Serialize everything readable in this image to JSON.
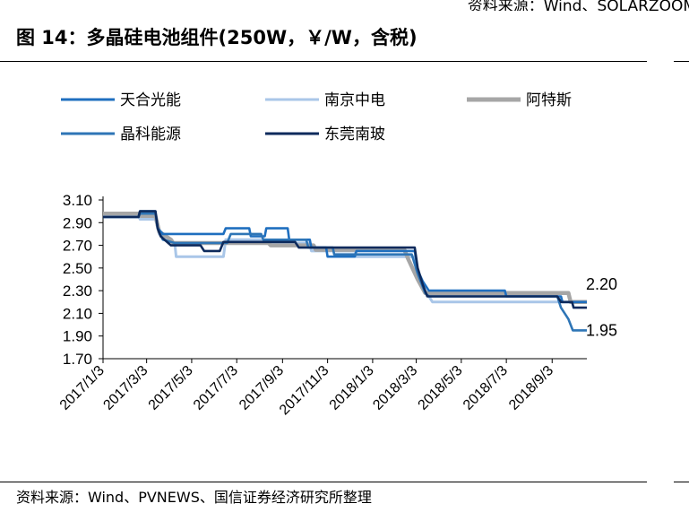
{
  "header": {
    "source_top": "资料来源：Wind、SOLARZOOM",
    "title": "图 14：多晶硅电池组件(250W，￥/W，含税)"
  },
  "footer": {
    "source": "资料来源：Wind、PVNEWS、国信证券经济研究所整理"
  },
  "chart_data": {
    "type": "line",
    "title": "图 14：多晶硅电池组件(250W，￥/W，含税)",
    "xlabel": "",
    "ylabel": "",
    "ylim": [
      1.7,
      3.1
    ],
    "yticks": [
      "3.10",
      "2.90",
      "2.70",
      "2.50",
      "2.30",
      "2.10",
      "1.90",
      "1.70"
    ],
    "xticks": [
      "2017/1/3",
      "2017/3/3",
      "2017/5/3",
      "2017/7/3",
      "2017/9/3",
      "2017/11/3",
      "2018/1/3",
      "2018/3/3",
      "2018/5/3",
      "2018/7/3",
      "2018/9/3"
    ],
    "x_range": [
      "2017/1/3",
      "2018/10/20"
    ],
    "grid": false,
    "legend_position": "top",
    "annotations": [
      {
        "text": "2.20",
        "value": 2.2,
        "series": "阿特斯"
      },
      {
        "text": "1.95",
        "value": 1.95,
        "series": "晶科能源"
      }
    ],
    "series": [
      {
        "name": "天合光能",
        "color": "#1f6fbf",
        "points": [
          [
            "2017-01-03",
            2.95
          ],
          [
            "2017-02-20",
            2.95
          ],
          [
            "2017-02-22",
            3.0
          ],
          [
            "2017-03-15",
            3.0
          ],
          [
            "2017-03-18",
            2.85
          ],
          [
            "2017-03-25",
            2.8
          ],
          [
            "2017-06-15",
            2.8
          ],
          [
            "2017-06-18",
            2.85
          ],
          [
            "2017-07-20",
            2.85
          ],
          [
            "2017-07-22",
            2.78
          ],
          [
            "2017-08-10",
            2.78
          ],
          [
            "2017-08-12",
            2.85
          ],
          [
            "2017-09-10",
            2.85
          ],
          [
            "2017-09-12",
            2.75
          ],
          [
            "2017-10-10",
            2.75
          ],
          [
            "2017-10-12",
            2.68
          ],
          [
            "2017-11-01",
            2.68
          ],
          [
            "2017-11-03",
            2.6
          ],
          [
            "2017-12-10",
            2.6
          ],
          [
            "2017-12-12",
            2.65
          ],
          [
            "2018-03-01",
            2.65
          ],
          [
            "2018-03-05",
            2.48
          ],
          [
            "2018-03-12",
            2.38
          ],
          [
            "2018-03-20",
            2.3
          ],
          [
            "2018-07-01",
            2.3
          ],
          [
            "2018-07-03",
            2.25
          ],
          [
            "2018-09-15",
            2.25
          ],
          [
            "2018-09-17",
            2.2
          ],
          [
            "2018-10-20",
            2.2
          ]
        ]
      },
      {
        "name": "南京中电",
        "color": "#a9c6e8",
        "points": [
          [
            "2017-01-03",
            2.97
          ],
          [
            "2017-02-20",
            2.97
          ],
          [
            "2017-02-22",
            2.93
          ],
          [
            "2017-03-15",
            2.93
          ],
          [
            "2017-03-20",
            2.8
          ],
          [
            "2017-04-10",
            2.72
          ],
          [
            "2017-04-12",
            2.6
          ],
          [
            "2017-06-15",
            2.6
          ],
          [
            "2017-06-18",
            2.75
          ],
          [
            "2017-08-10",
            2.75
          ],
          [
            "2017-08-12",
            2.72
          ],
          [
            "2017-10-10",
            2.72
          ],
          [
            "2017-10-12",
            2.65
          ],
          [
            "2017-12-10",
            2.65
          ],
          [
            "2017-12-12",
            2.6
          ],
          [
            "2018-02-28",
            2.6
          ],
          [
            "2018-03-05",
            2.48
          ],
          [
            "2018-03-15",
            2.3
          ],
          [
            "2018-03-25",
            2.2
          ],
          [
            "2018-10-20",
            2.2
          ]
        ]
      },
      {
        "name": "阿特斯",
        "color": "#a6a6a6",
        "points": [
          [
            "2017-01-03",
            2.98
          ],
          [
            "2017-02-20",
            2.98
          ],
          [
            "2017-02-22",
            2.96
          ],
          [
            "2017-03-15",
            2.96
          ],
          [
            "2017-03-20",
            2.82
          ],
          [
            "2017-04-05",
            2.75
          ],
          [
            "2017-04-08",
            2.72
          ],
          [
            "2017-08-15",
            2.72
          ],
          [
            "2017-08-18",
            2.7
          ],
          [
            "2017-10-15",
            2.7
          ],
          [
            "2017-10-18",
            2.66
          ],
          [
            "2018-02-15",
            2.66
          ],
          [
            "2018-02-20",
            2.58
          ],
          [
            "2018-03-05",
            2.4
          ],
          [
            "2018-03-15",
            2.28
          ],
          [
            "2018-09-25",
            2.28
          ],
          [
            "2018-09-28",
            2.2
          ],
          [
            "2018-10-20",
            2.2
          ]
        ]
      },
      {
        "name": "晶科能源",
        "color": "#2e75b6",
        "points": [
          [
            "2017-01-03",
            2.95
          ],
          [
            "2017-02-20",
            2.95
          ],
          [
            "2017-02-22",
            2.98
          ],
          [
            "2017-03-15",
            2.98
          ],
          [
            "2017-03-18",
            2.85
          ],
          [
            "2017-03-25",
            2.75
          ],
          [
            "2017-04-10",
            2.72
          ],
          [
            "2017-06-20",
            2.72
          ],
          [
            "2017-06-25",
            2.8
          ],
          [
            "2017-08-05",
            2.8
          ],
          [
            "2017-08-08",
            2.75
          ],
          [
            "2017-10-05",
            2.75
          ],
          [
            "2017-10-08",
            2.68
          ],
          [
            "2017-11-10",
            2.68
          ],
          [
            "2017-11-12",
            2.62
          ],
          [
            "2018-02-25",
            2.62
          ],
          [
            "2018-03-05",
            2.45
          ],
          [
            "2018-03-15",
            2.28
          ],
          [
            "2018-03-20",
            2.25
          ],
          [
            "2018-09-10",
            2.25
          ],
          [
            "2018-09-15",
            2.15
          ],
          [
            "2018-09-25",
            2.05
          ],
          [
            "2018-10-01",
            1.95
          ],
          [
            "2018-10-20",
            1.95
          ]
        ]
      },
      {
        "name": "东莞南玻",
        "color": "#0d2a5c",
        "points": [
          [
            "2017-01-03",
            2.95
          ],
          [
            "2017-02-20",
            2.95
          ],
          [
            "2017-02-22",
            3.0
          ],
          [
            "2017-03-15",
            3.0
          ],
          [
            "2017-03-18",
            2.85
          ],
          [
            "2017-03-22",
            2.78
          ],
          [
            "2017-04-05",
            2.7
          ],
          [
            "2017-05-15",
            2.7
          ],
          [
            "2017-05-20",
            2.65
          ],
          [
            "2017-06-10",
            2.65
          ],
          [
            "2017-06-15",
            2.73
          ],
          [
            "2017-09-20",
            2.73
          ],
          [
            "2017-09-25",
            2.68
          ],
          [
            "2018-03-01",
            2.68
          ],
          [
            "2018-03-05",
            2.5
          ],
          [
            "2018-03-12",
            2.35
          ],
          [
            "2018-03-18",
            2.25
          ],
          [
            "2018-09-10",
            2.25
          ],
          [
            "2018-09-15",
            2.2
          ],
          [
            "2018-09-30",
            2.2
          ],
          [
            "2018-10-02",
            2.15
          ],
          [
            "2018-10-20",
            2.15
          ]
        ]
      }
    ]
  }
}
